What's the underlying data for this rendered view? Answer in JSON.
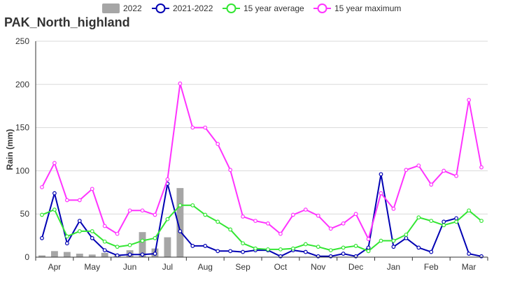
{
  "chart_data": {
    "type": "bar+line",
    "title": "PAK_North_highland",
    "ylabel": "Rain (mm)",
    "xlabel": "",
    "ylim": [
      0,
      250
    ],
    "yticks": [
      0,
      50,
      100,
      150,
      200,
      250
    ],
    "grid": "horizontal",
    "legend_position": "top-center",
    "months": [
      "Apr",
      "May",
      "Jun",
      "Jul",
      "Aug",
      "Sep",
      "Oct",
      "Nov",
      "Dec",
      "Jan",
      "Feb",
      "Mar"
    ],
    "dekad_count": 36,
    "series": [
      {
        "name": "2022",
        "kind": "bar",
        "color": "#a6a6a6",
        "values": [
          2,
          7,
          6,
          4,
          3,
          5,
          2,
          8,
          29,
          10,
          23,
          80
        ]
      },
      {
        "name": "2021-2022",
        "kind": "line",
        "color": "#0000b3",
        "values": [
          22,
          74,
          16,
          42,
          22,
          8,
          2,
          3,
          3,
          4,
          85,
          30,
          13,
          13,
          7,
          7,
          6,
          8,
          8,
          1,
          8,
          6,
          1,
          1,
          4,
          1,
          11,
          96,
          12,
          22,
          11,
          6,
          41,
          45,
          4,
          1
        ]
      },
      {
        "name": "15 year average",
        "kind": "line",
        "color": "#33e633",
        "values": [
          49,
          55,
          24,
          30,
          30,
          18,
          12,
          14,
          19,
          22,
          44,
          60,
          60,
          49,
          41,
          32,
          16,
          10,
          9,
          9,
          10,
          15,
          12,
          8,
          11,
          13,
          7,
          19,
          19,
          26,
          46,
          42,
          37,
          41,
          54,
          42
        ]
      },
      {
        "name": "15 year maximum",
        "kind": "line",
        "color": "#ff33ff",
        "values": [
          81,
          109,
          66,
          66,
          79,
          36,
          27,
          54,
          54,
          49,
          90,
          201,
          150,
          150,
          131,
          101,
          47,
          42,
          39,
          27,
          49,
          55,
          48,
          33,
          39,
          50,
          21,
          74,
          56,
          101,
          106,
          84,
          100,
          94,
          182,
          104
        ]
      }
    ]
  }
}
